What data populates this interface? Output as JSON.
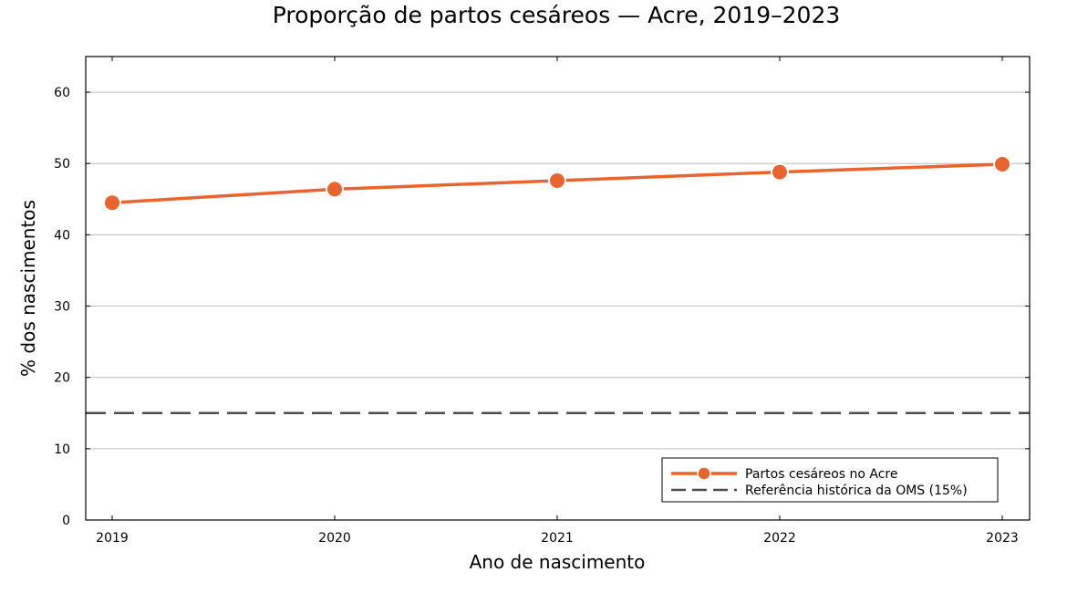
{
  "chart_data": {
    "type": "line",
    "title": "Proporção de partos cesáreos — Acre, 2019–2023",
    "xlabel": "Ano de nascimento",
    "ylabel": "% dos nascimentos",
    "categories": [
      "2019",
      "2020",
      "2021",
      "2022",
      "2023"
    ],
    "ylim": [
      0,
      65
    ],
    "yticks": [
      0,
      10,
      20,
      30,
      40,
      50,
      60
    ],
    "grid": "horizontal",
    "legend_position": "bottom-right",
    "series": [
      {
        "name": "Partos cesáreos no Acre",
        "values": [
          44.5,
          46.4,
          47.6,
          48.8,
          49.9
        ],
        "color": "#e8652f",
        "style": "solid-with-markers"
      }
    ],
    "reference_lines": [
      {
        "name": "Referência histórica da OMS (15%)",
        "value": 15,
        "color": "#4d4d4d",
        "style": "dashed"
      }
    ]
  }
}
